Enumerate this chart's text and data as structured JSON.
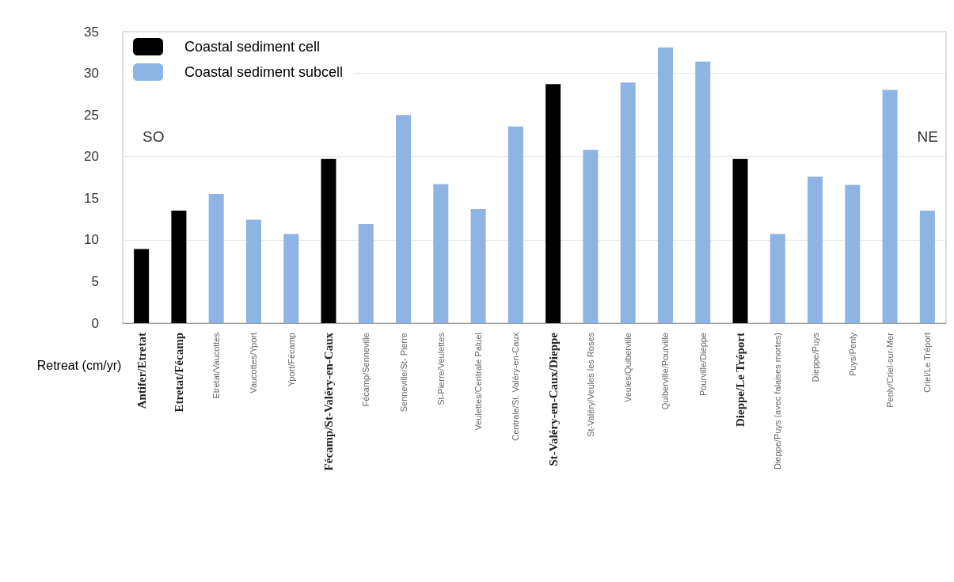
{
  "chart_data": {
    "type": "bar",
    "ylabel": "Retreat (cm/yr)",
    "categories": [
      "Antifer/Etretat",
      "Etretat/Fécamp",
      "Etretat/Vaucottes",
      "Vaucottes/Yport",
      "Yport/Fécamp",
      "Fécamp/St-Valéry-en-Caux",
      "Fécamp/Senneville",
      "Senneville/St- Pierre",
      "St-Pierre/Veulettes",
      "Veulettes/Centrale Paluel",
      "Centrale/St. Valéry-en-Caux",
      "St-Valéry-en-Caux/Dieppe",
      "St-Valéry/Veules les Roses",
      "Veules/Quiberville",
      "Quiberville/Pourville",
      "Pourville/Dieppe",
      "Dieppe/Le Tréport",
      "Dieppe/Puys (avec falaises mortes)",
      "Dieppe/Puys",
      "Puys/Penly",
      "Penly/Criel-sur-Mer",
      "Criel/Le Tréport"
    ],
    "series": [
      {
        "name": "Coastal sediment cell",
        "color": "#000000",
        "values": [
          8.9,
          13.5,
          null,
          null,
          null,
          19.7,
          null,
          null,
          null,
          null,
          null,
          28.7,
          null,
          null,
          null,
          null,
          19.7,
          null,
          null,
          null,
          null,
          null
        ]
      },
      {
        "name": "Coastal sediment subcell",
        "color": "#8db4e2",
        "values": [
          null,
          null,
          15.5,
          12.4,
          10.7,
          null,
          11.9,
          25,
          16.7,
          13.7,
          23.6,
          null,
          20.8,
          28.9,
          33.1,
          31.4,
          null,
          10.7,
          17.6,
          16.6,
          28.0,
          13.5
        ]
      }
    ],
    "ylim": [
      0,
      35
    ],
    "yticks": [
      0,
      5,
      10,
      15,
      20,
      25,
      30,
      35
    ],
    "grid": "y",
    "legend": "top left",
    "annotations": [
      "SO",
      "NE"
    ]
  }
}
